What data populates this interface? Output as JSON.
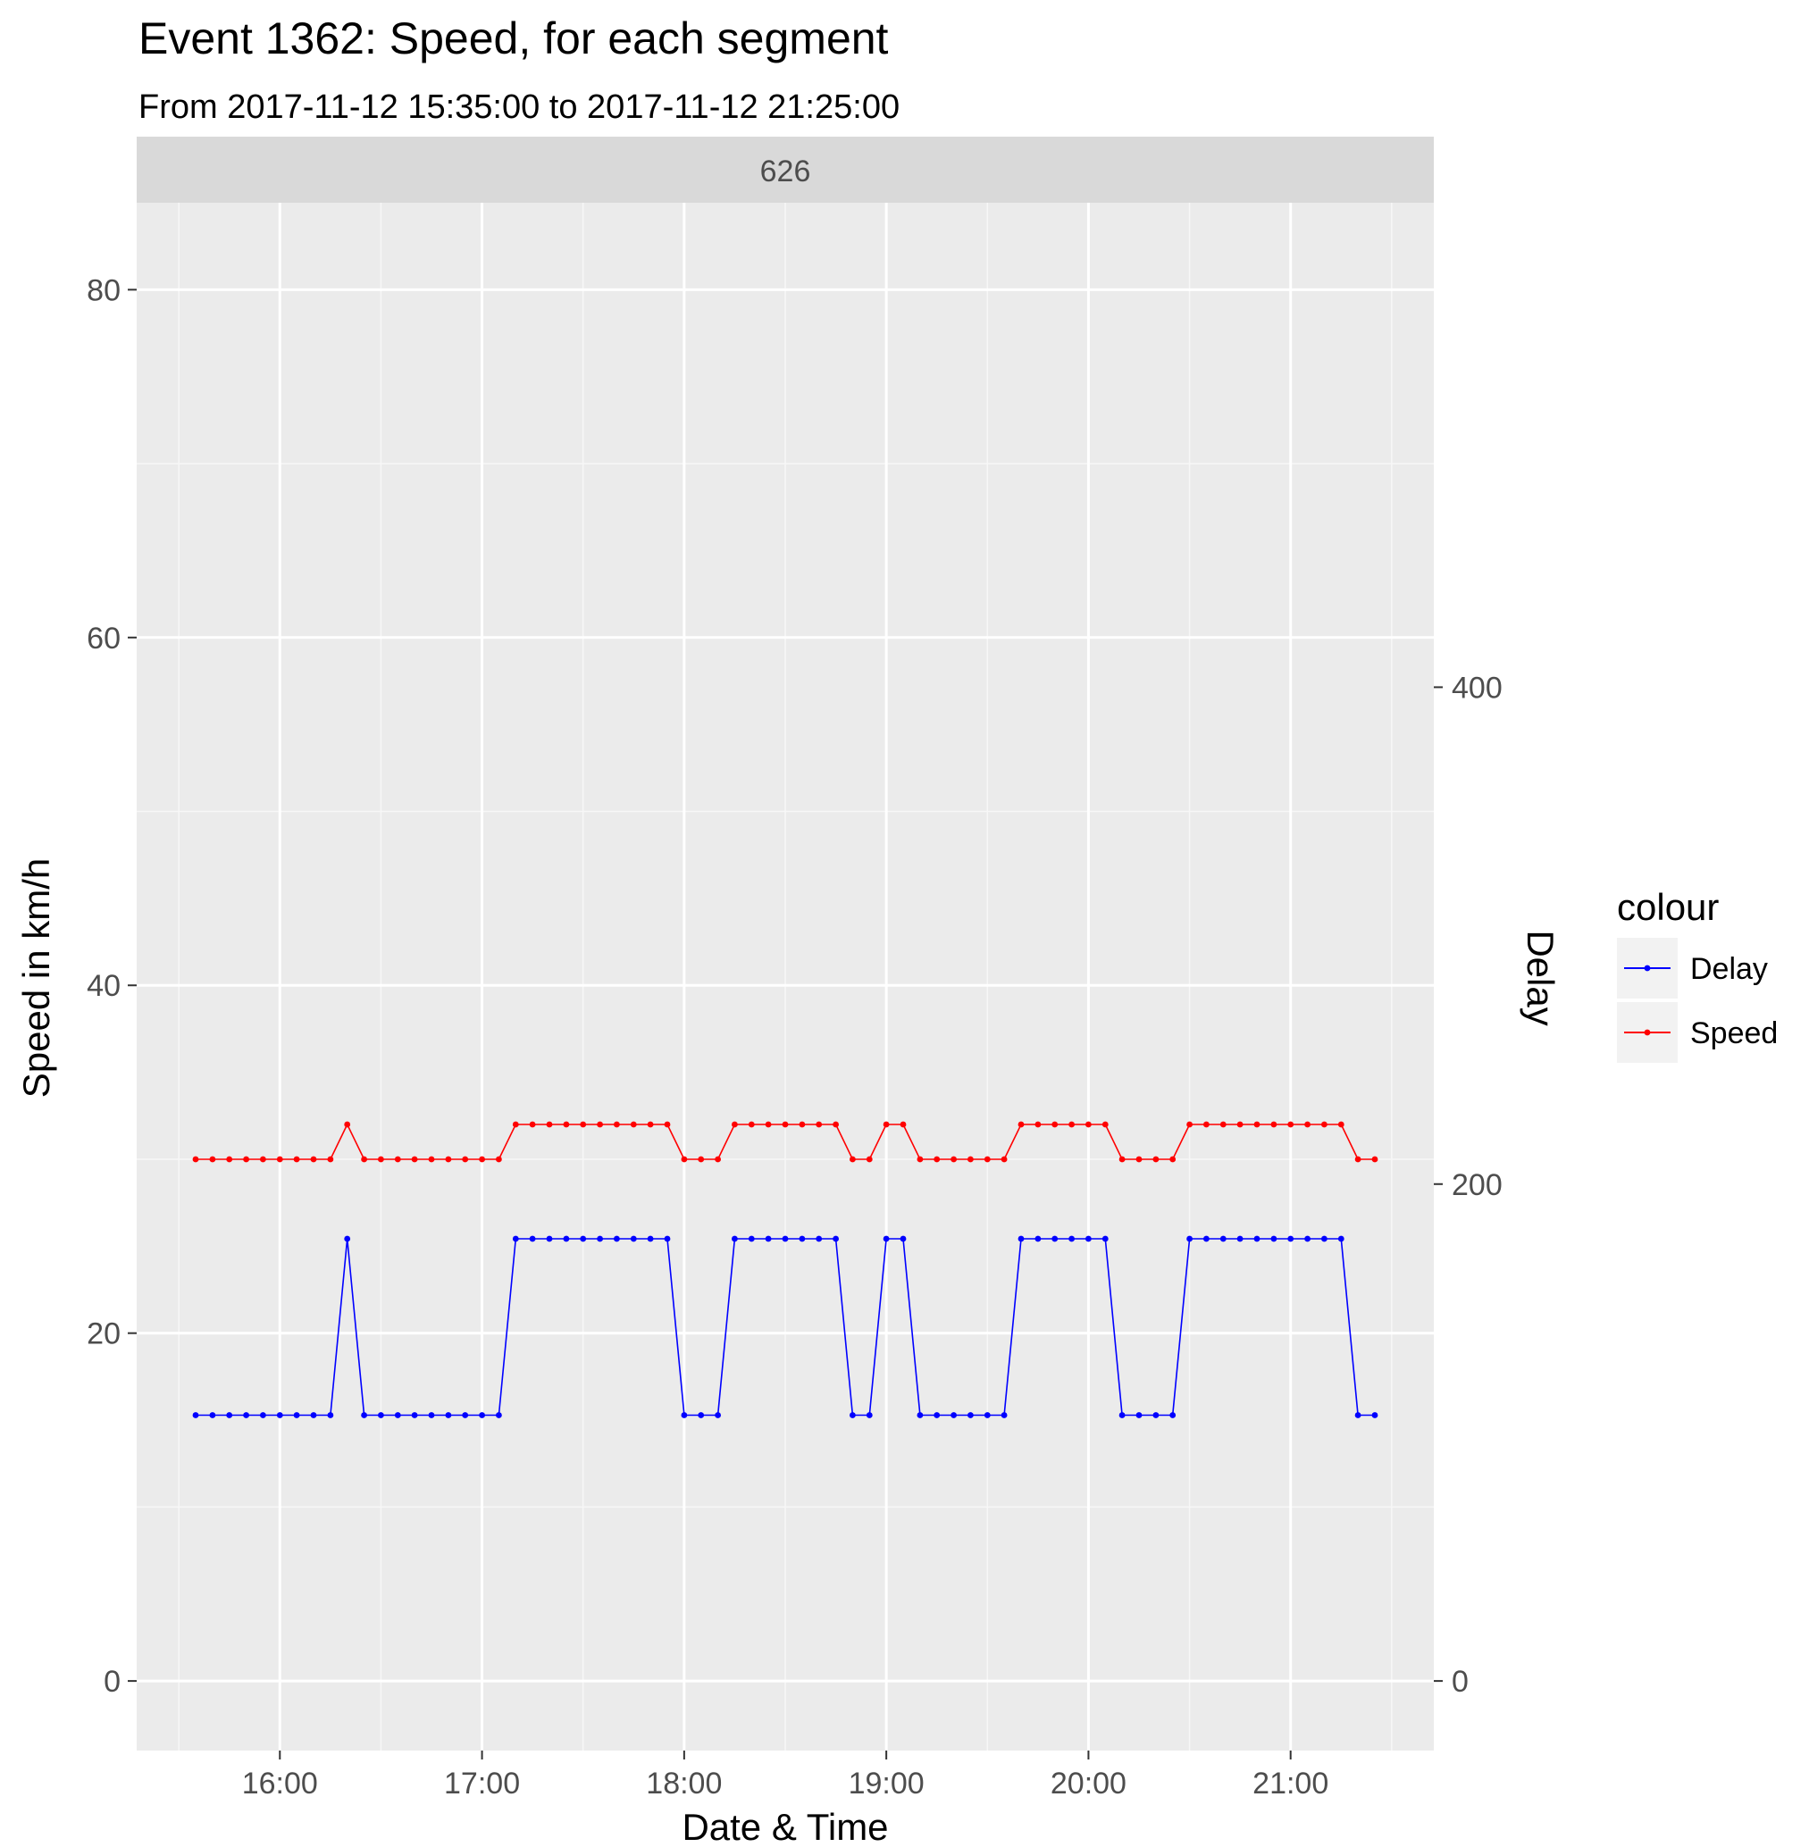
{
  "chart_data": {
    "type": "line",
    "title": "Event 1362: Speed, for each segment",
    "subtitle": "From 2017-11-12 15:35:00 to 2017-11-12 21:25:00",
    "facet_label": "626",
    "xlabel": "Date & Time",
    "ylabel": "Speed in km/h",
    "y2label": "Delay",
    "x_ticks": [
      "16:00",
      "17:00",
      "18:00",
      "19:00",
      "20:00",
      "21:00"
    ],
    "y_ticks": [
      0,
      20,
      40,
      60,
      80
    ],
    "y2_ticks": [
      0,
      200,
      400
    ],
    "ylim": [
      -4,
      85
    ],
    "y2_note": "secondary axis: Delay = 7 × Speed",
    "grid": true,
    "legend": {
      "title": "colour",
      "position": "right",
      "entries": [
        {
          "name": "Delay",
          "color": "#0000ff"
        },
        {
          "name": "Speed",
          "color": "#ff0000"
        }
      ]
    },
    "x": [
      "15:35",
      "15:40",
      "15:45",
      "15:50",
      "15:55",
      "16:00",
      "16:05",
      "16:10",
      "16:15",
      "16:20",
      "16:25",
      "16:30",
      "16:35",
      "16:40",
      "16:45",
      "16:50",
      "16:55",
      "17:00",
      "17:05",
      "17:10",
      "17:15",
      "17:20",
      "17:25",
      "17:30",
      "17:35",
      "17:40",
      "17:45",
      "17:50",
      "17:55",
      "18:00",
      "18:05",
      "18:10",
      "18:15",
      "18:20",
      "18:25",
      "18:30",
      "18:35",
      "18:40",
      "18:45",
      "18:50",
      "18:55",
      "19:00",
      "19:05",
      "19:10",
      "19:15",
      "19:20",
      "19:25",
      "19:30",
      "19:35",
      "19:40",
      "19:45",
      "19:50",
      "19:55",
      "20:00",
      "20:05",
      "20:10",
      "20:15",
      "20:20",
      "20:25",
      "20:30",
      "20:35",
      "20:40",
      "20:45",
      "20:50",
      "20:55",
      "21:00",
      "21:05",
      "21:10",
      "21:15",
      "21:20",
      "21:25"
    ],
    "series": [
      {
        "name": "Speed",
        "color": "#ff0000",
        "axis": "left",
        "values": [
          30,
          30,
          30,
          30,
          30,
          30,
          30,
          30,
          30,
          32,
          30,
          30,
          30,
          30,
          30,
          30,
          30,
          30,
          30,
          32,
          32,
          32,
          32,
          32,
          32,
          32,
          32,
          32,
          32,
          30,
          30,
          30,
          32,
          32,
          32,
          32,
          32,
          32,
          32,
          30,
          30,
          32,
          32,
          30,
          30,
          30,
          30,
          30,
          30,
          32,
          32,
          32,
          32,
          32,
          32,
          30,
          30,
          30,
          30,
          32,
          32,
          32,
          32,
          32,
          32,
          32,
          32,
          32,
          32,
          30,
          30
        ]
      },
      {
        "name": "Delay",
        "color": "#0000ff",
        "axis": "right",
        "values": [
          107,
          107,
          107,
          107,
          107,
          107,
          107,
          107,
          107,
          178,
          107,
          107,
          107,
          107,
          107,
          107,
          107,
          107,
          107,
          178,
          178,
          178,
          178,
          178,
          178,
          178,
          178,
          178,
          178,
          107,
          107,
          107,
          178,
          178,
          178,
          178,
          178,
          178,
          178,
          107,
          107,
          178,
          178,
          107,
          107,
          107,
          107,
          107,
          107,
          178,
          178,
          178,
          178,
          178,
          178,
          107,
          107,
          107,
          107,
          178,
          178,
          178,
          178,
          178,
          178,
          178,
          178,
          178,
          178,
          107,
          107
        ]
      }
    ]
  }
}
